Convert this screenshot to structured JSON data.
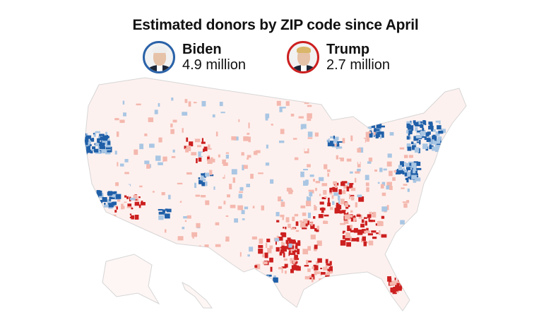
{
  "title": "Estimated donors by ZIP code since April",
  "candidates": [
    {
      "name": "Biden",
      "amount": "4.9 million",
      "color": "#2a62a8"
    },
    {
      "name": "Trump",
      "amount": "2.7 million",
      "color": "#cc1f1f"
    }
  ],
  "map": {
    "region": "United States",
    "colors": {
      "biden_strong": "#1f5fa8",
      "biden_light": "#a9c6e3",
      "neutral": "#fdf1ef",
      "trump_light": "#f4b8ae",
      "trump_strong": "#cc1f1f",
      "border": "#d6d6d6"
    }
  }
}
